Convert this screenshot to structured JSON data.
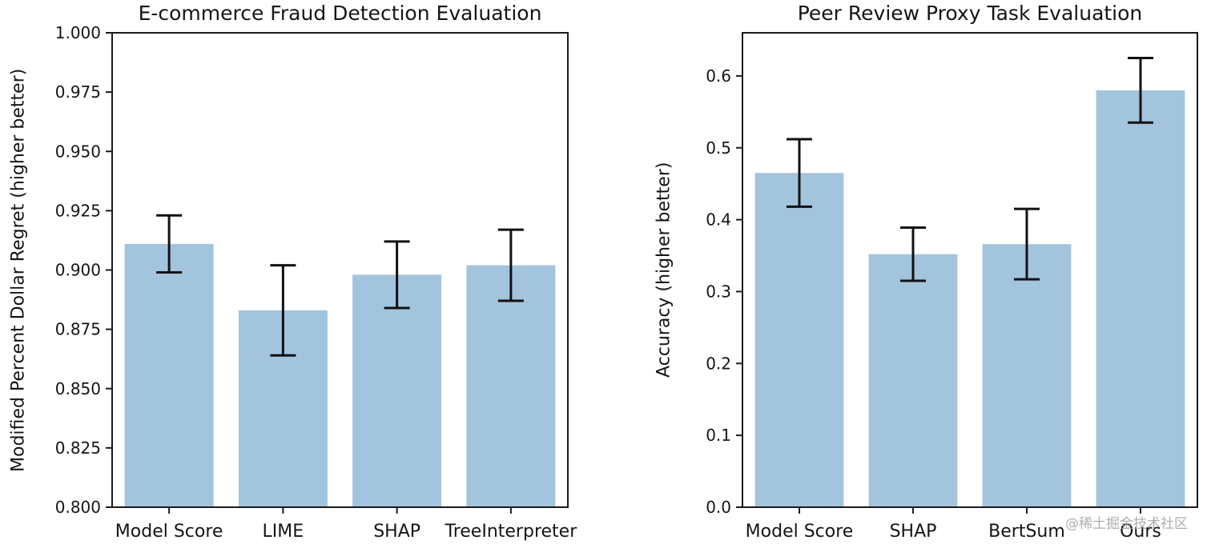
{
  "figure": {
    "background": "#ffffff",
    "text_color": "#151515"
  },
  "watermark": {
    "text": "@稀土掘金技术社区",
    "color": "#a0a0a0"
  },
  "chart_data": [
    {
      "type": "bar",
      "title": "E-commerce Fraud Detection Evaluation",
      "ylabel": "Modified Percent Dollar Regret (higher better)",
      "xlabel": "",
      "categories": [
        "Model Score",
        "LIME",
        "SHAP",
        "TreeInterpreter"
      ],
      "values": [
        0.911,
        0.883,
        0.898,
        0.902
      ],
      "errors": [
        0.012,
        0.019,
        0.014,
        0.015
      ],
      "ylim": [
        0.8,
        1.0
      ],
      "yticks": [
        0.8,
        0.825,
        0.85,
        0.875,
        0.9,
        0.925,
        0.95,
        0.975,
        1.0
      ],
      "ytick_labels": [
        "0.800",
        "0.825",
        "0.850",
        "0.875",
        "0.900",
        "0.925",
        "0.950",
        "0.975",
        "1.000"
      ],
      "grid": false,
      "legend": "none",
      "bar_color": "#a3c4dd",
      "error_color": "#111111"
    },
    {
      "type": "bar",
      "title": "Peer Review Proxy Task Evaluation",
      "ylabel": "Accuracy (higher better)",
      "xlabel": "",
      "categories": [
        "Model Score",
        "SHAP",
        "BertSum",
        "Ours"
      ],
      "values": [
        0.465,
        0.352,
        0.366,
        0.58
      ],
      "errors": [
        0.047,
        0.037,
        0.049,
        0.045
      ],
      "ylim": [
        0.0,
        0.66
      ],
      "yticks": [
        0.0,
        0.1,
        0.2,
        0.3,
        0.4,
        0.5,
        0.6
      ],
      "ytick_labels": [
        "0.0",
        "0.1",
        "0.2",
        "0.3",
        "0.4",
        "0.5",
        "0.6"
      ],
      "grid": false,
      "legend": "none",
      "bar_color": "#a3c4dd",
      "error_color": "#111111"
    }
  ]
}
